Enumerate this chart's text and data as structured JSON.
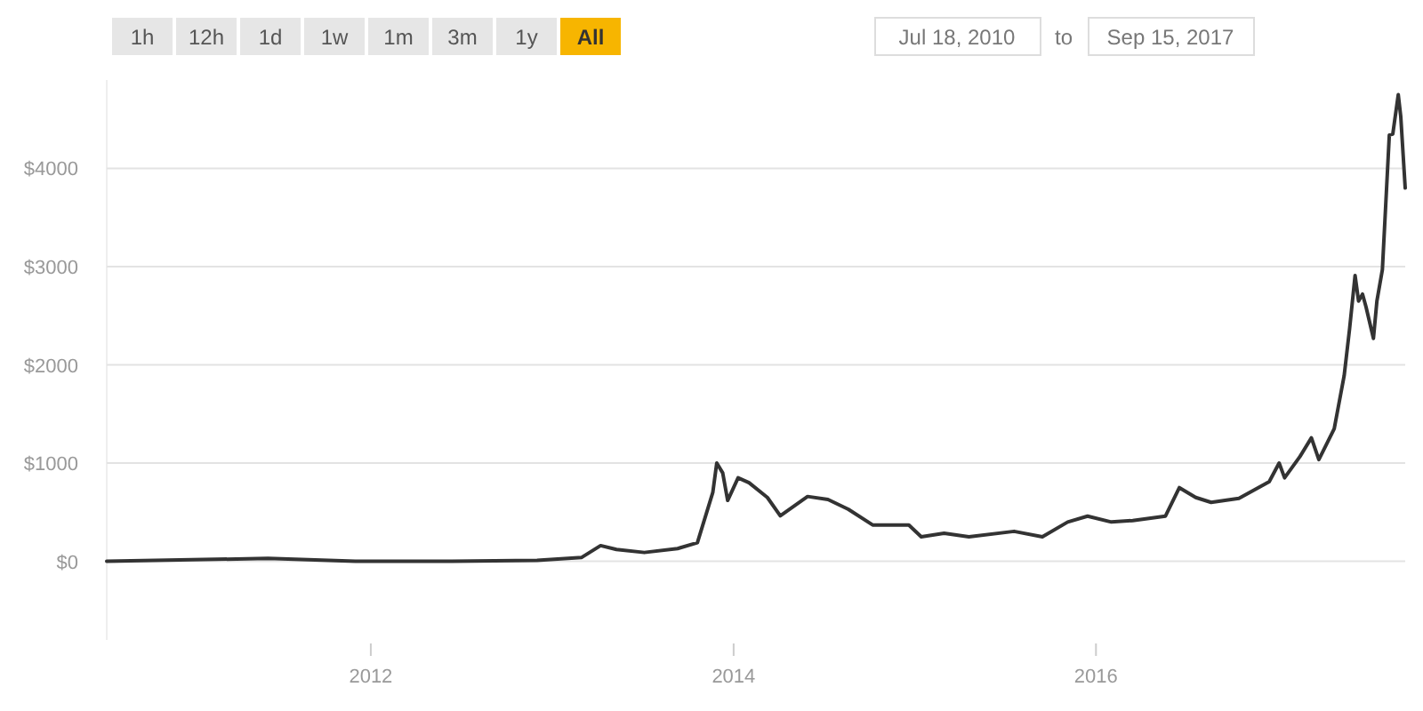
{
  "chart_data": {
    "type": "line",
    "x": [
      "2010-07-18",
      "2011-06-08",
      "2011-12-01",
      "2012-06-01",
      "2012-12-01",
      "2013-03-01",
      "2013-04-08",
      "2013-05-10",
      "2013-07-05",
      "2013-09-10",
      "2013-10-20",
      "2013-11-20",
      "2013-11-28",
      "2013-12-10",
      "2013-12-20",
      "2014-01-10",
      "2014-02-01",
      "2014-03-10",
      "2014-04-05",
      "2014-05-30",
      "2014-07-10",
      "2014-08-20",
      "2014-10-08",
      "2014-12-20",
      "2015-01-14",
      "2015-03-01",
      "2015-04-20",
      "2015-07-20",
      "2015-09-15",
      "2015-11-05",
      "2015-12-15",
      "2016-02-01",
      "2016-03-15",
      "2016-05-20",
      "2016-06-17",
      "2016-07-20",
      "2016-08-20",
      "2016-10-15",
      "2016-12-15",
      "2017-01-04",
      "2017-01-15",
      "2017-02-15",
      "2017-03-10",
      "2017-03-25",
      "2017-04-25",
      "2017-05-15",
      "2017-05-26",
      "2017-06-06",
      "2017-06-13",
      "2017-06-21",
      "2017-06-28",
      "2017-07-13",
      "2017-07-20",
      "2017-07-31",
      "2017-08-14",
      "2017-08-21",
      "2017-09-01",
      "2017-09-06",
      "2017-09-15"
    ],
    "series": [
      {
        "color": "#333333",
        "values": [
          0,
          30,
          0,
          0,
          10,
          40,
          160,
          120,
          90,
          130,
          190,
          700,
          1000,
          900,
          620,
          850,
          800,
          650,
          463,
          660,
          630,
          530,
          370,
          370,
          250,
          285,
          250,
          305,
          250,
          400,
          460,
          400,
          415,
          460,
          750,
          650,
          600,
          640,
          810,
          1000,
          850,
          1067,
          1257,
          1035,
          1350,
          1890,
          2370,
          2910,
          2650,
          2720,
          2590,
          2270,
          2650,
          2970,
          4340,
          4350,
          4750,
          4530,
          3800
        ]
      }
    ],
    "xlim": [
      "2010-07-18",
      "2017-09-15"
    ],
    "xticks": [
      {
        "value": "2012-01-01",
        "label": "2012"
      },
      {
        "value": "2014-01-01",
        "label": "2014"
      },
      {
        "value": "2016-01-01",
        "label": "2016"
      }
    ],
    "ylim": [
      -800,
      4900
    ],
    "yticks": [
      {
        "value": 0,
        "label": "$0"
      },
      {
        "value": 1000,
        "label": "$1000"
      },
      {
        "value": 2000,
        "label": "$2000"
      },
      {
        "value": 3000,
        "label": "$3000"
      },
      {
        "value": 4000,
        "label": "$4000"
      }
    ],
    "grid": "y",
    "marker": "none",
    "line_style": "solid",
    "annotations": [
      "1h",
      "12h",
      "1d",
      "1w",
      "1m",
      "3m",
      "1y",
      "All",
      "Jul 18, 2010",
      "to",
      "Sep 15, 2017"
    ]
  }
}
